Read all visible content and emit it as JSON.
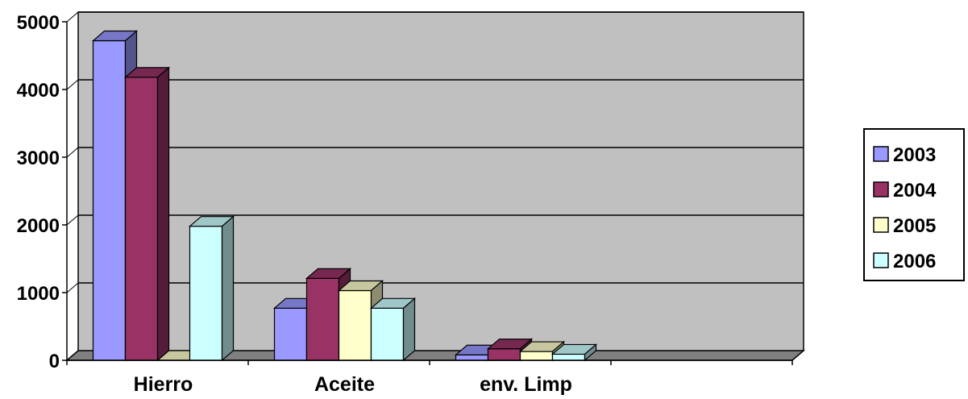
{
  "chart_data": {
    "type": "bar",
    "categories": [
      "Hierro",
      "Aceite",
      "env. Limp",
      ""
    ],
    "series": [
      {
        "name": "2003",
        "values": [
          4720,
          770,
          80,
          0
        ],
        "color": "#9999ff"
      },
      {
        "name": "2004",
        "values": [
          4180,
          1210,
          170,
          0
        ],
        "color": "#993366"
      },
      {
        "name": "2005",
        "values": [
          0,
          1030,
          130,
          0
        ],
        "color": "#ffffcc"
      },
      {
        "name": "2006",
        "values": [
          1980,
          770,
          90,
          0
        ],
        "color": "#ccffff"
      }
    ],
    "yticks": [
      "0",
      "1000",
      "2000",
      "3000",
      "4000",
      "5000"
    ],
    "ylim": [
      0,
      5000
    ],
    "grid": true,
    "legend": "right",
    "plot_background": "#c0c0c0"
  }
}
